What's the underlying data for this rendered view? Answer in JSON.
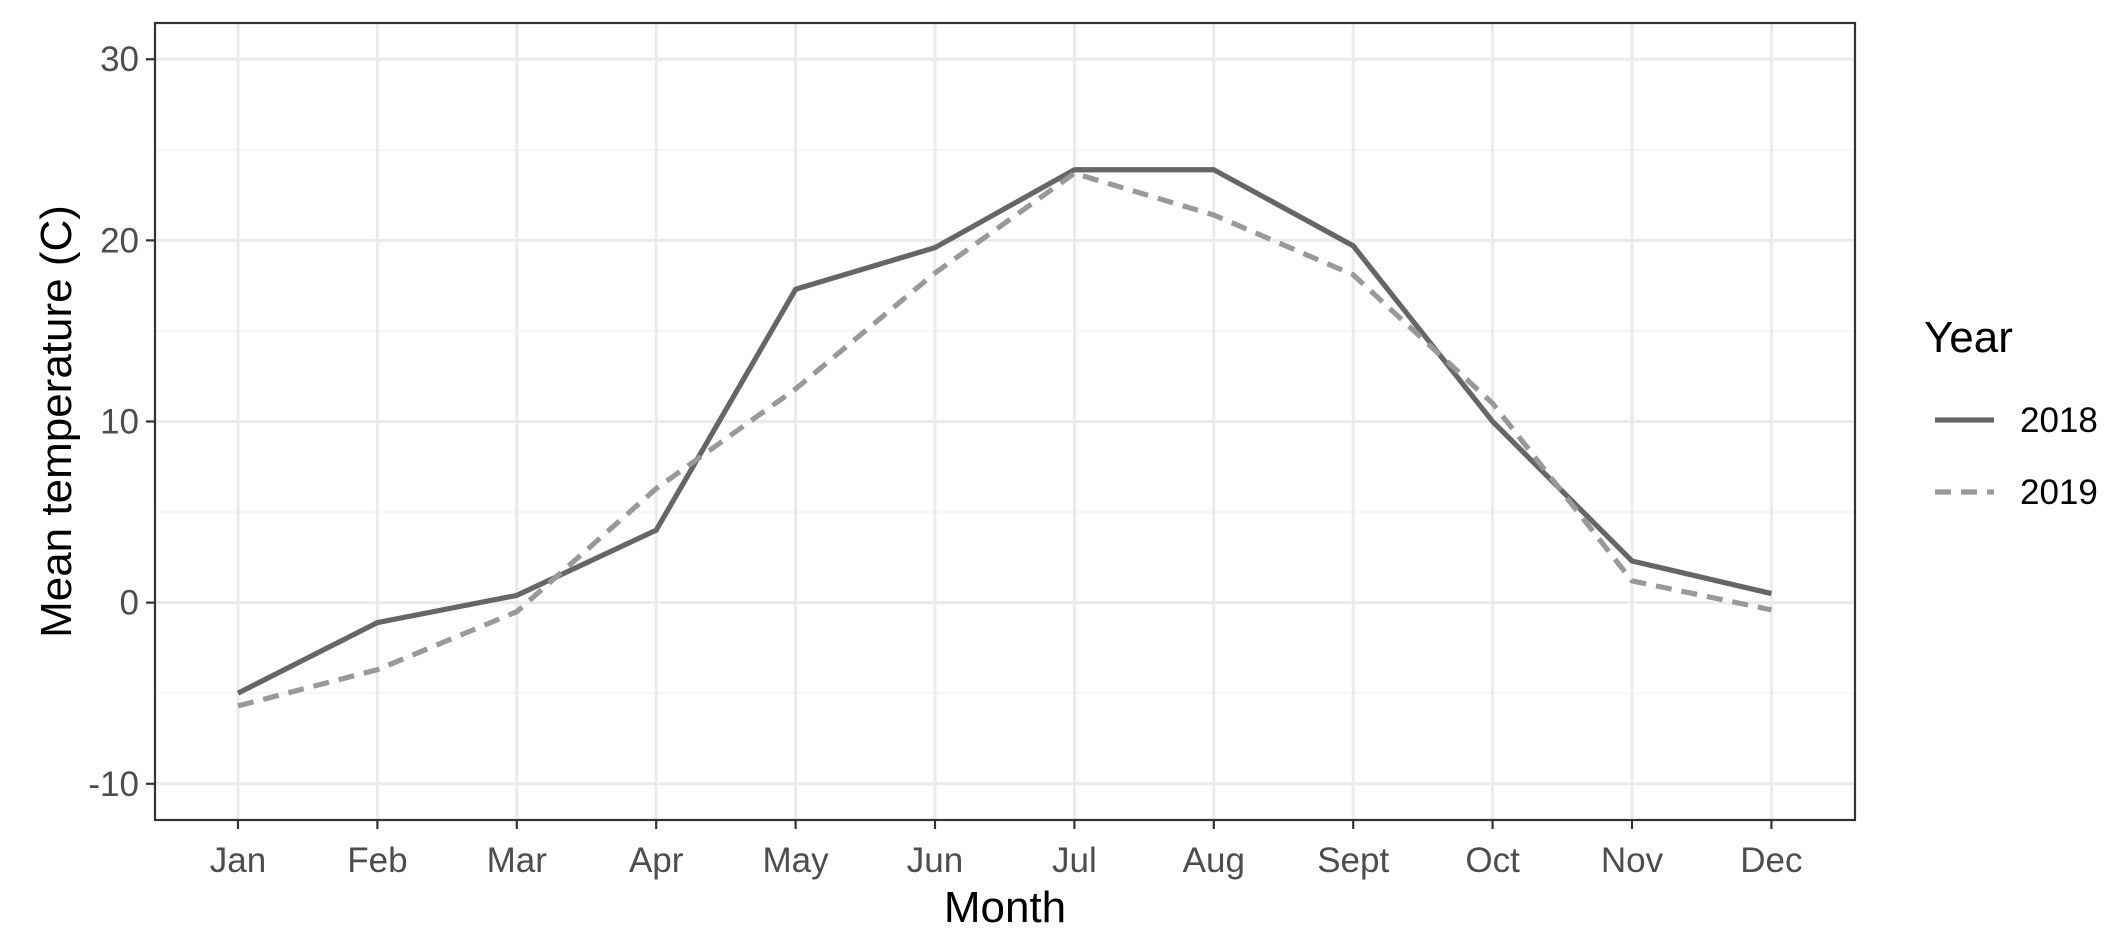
{
  "chart_data": {
    "type": "line",
    "title": "",
    "xlabel": "Month",
    "ylabel": "Mean temperature (C)",
    "categories": [
      "Jan",
      "Feb",
      "Mar",
      "Apr",
      "May",
      "Jun",
      "Jul",
      "Aug",
      "Sept",
      "Oct",
      "Nov",
      "Dec"
    ],
    "ylim": [
      -12,
      32
    ],
    "yticks": [
      -10,
      0,
      10,
      20,
      30
    ],
    "ytick_labels": [
      "-10",
      "0",
      "10",
      "20",
      "30"
    ],
    "grid": true,
    "legend": {
      "title": "Year",
      "placement": "right"
    },
    "series": [
      {
        "name": "2018",
        "style": "solid",
        "color": "#666666",
        "values": [
          -5.0,
          -1.1,
          0.4,
          4.0,
          17.3,
          19.6,
          23.9,
          23.9,
          19.7,
          10.0,
          2.3,
          0.5
        ]
      },
      {
        "name": "2019",
        "style": "dashed",
        "color": "#999999",
        "values": [
          -5.7,
          -3.7,
          -0.5,
          6.3,
          11.8,
          18.2,
          23.7,
          21.4,
          18.1,
          11.0,
          1.2,
          -0.4
        ]
      }
    ]
  },
  "colors": {
    "panel_border": "#333333",
    "grid_major": "#ebebeb",
    "grid_minor": "#f4f4f4",
    "tick_text": "#4d4d4d"
  }
}
